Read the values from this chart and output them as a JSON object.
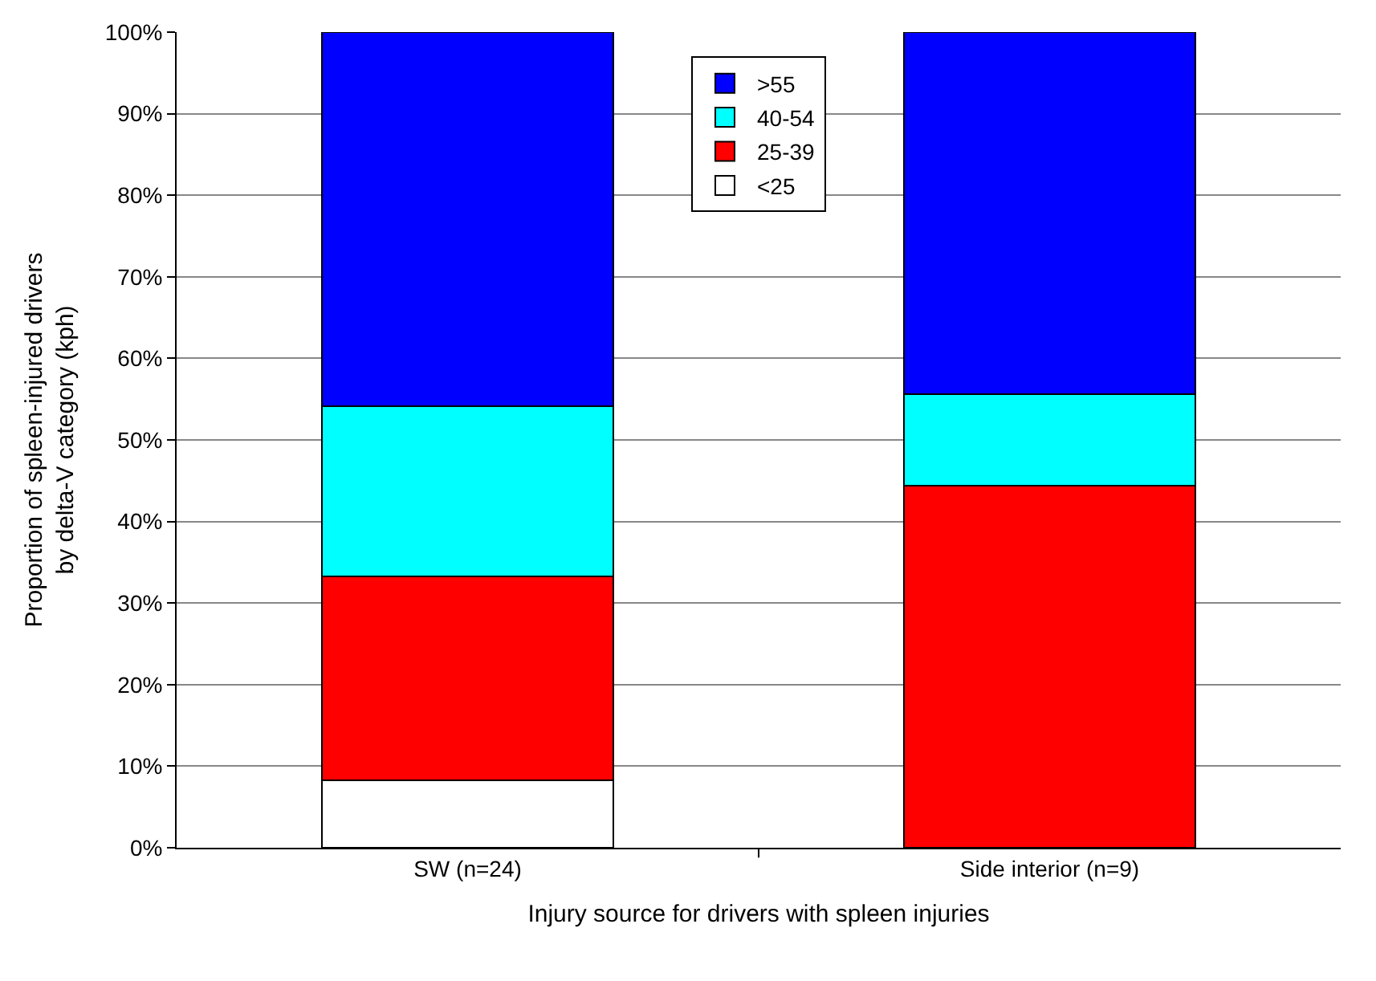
{
  "chart_data": {
    "type": "bar",
    "stacked": true,
    "xlabel": "Injury source for drivers with spleen injuries",
    "ylabel": "Proportion of spleen-injured drivers by delta-V category (kph)",
    "categories": [
      "SW (n=24)",
      "Side interior (n=9)"
    ],
    "series": [
      {
        "name": "<25",
        "color": "#ffffff",
        "values": [
          8.3,
          0
        ]
      },
      {
        "name": "25-39",
        "color": "#ff0000",
        "values": [
          25.0,
          44.4
        ]
      },
      {
        "name": "40-54",
        "color": "#00ffff",
        "values": [
          20.8,
          11.2
        ]
      },
      {
        "name": ">55",
        "color": "#0000ff",
        "values": [
          45.9,
          44.4
        ]
      }
    ],
    "ylim": [
      0,
      100
    ],
    "yticks": [
      {
        "value": 0,
        "label": "0%"
      },
      {
        "value": 10,
        "label": "10%"
      },
      {
        "value": 20,
        "label": "20%"
      },
      {
        "value": 30,
        "label": "30%"
      },
      {
        "value": 40,
        "label": "40%"
      },
      {
        "value": 50,
        "label": "50%"
      },
      {
        "value": 60,
        "label": "60%"
      },
      {
        "value": 70,
        "label": "70%"
      },
      {
        "value": 80,
        "label": "80%"
      },
      {
        "value": 90,
        "label": "90%"
      },
      {
        "value": 100,
        "label": "100%"
      }
    ],
    "grid": "y",
    "legend": "top"
  }
}
